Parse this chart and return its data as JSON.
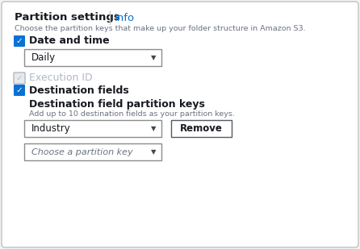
{
  "bg_color": "#f2f3f3",
  "panel_color": "#ffffff",
  "border_color": "#c0c0c0",
  "title_text": "Partition settings",
  "info_text": "Info",
  "info_color": "#0972d3",
  "subtitle_text": "Choose the partition keys that make up your folder structure in Amazon S3.",
  "subtitle_color": "#6b7280",
  "checkbox_blue": "#0972d3",
  "checkbox_gray_border": "#b0b8c4",
  "checkbox_gray_fill": "#e8eaed",
  "check1_label": "Date and time",
  "dropdown1_text": "Daily",
  "check2_label": "Execution ID",
  "check3_label": "Destination fields",
  "dest_title": "Destination field partition keys",
  "dest_subtitle": "Add up to 10 destination fields as your partition keys.",
  "dest_subtitle_color": "#6b7280",
  "dropdown2_text": "Industry",
  "remove_btn_text": "Remove",
  "dropdown3_text": "Choose a partition key",
  "dropdown_border": "#8c8c8c",
  "text_dark": "#16191f",
  "text_medium": "#414750",
  "remove_btn_border": "#545b64",
  "separator_color": "#c8c8c8"
}
